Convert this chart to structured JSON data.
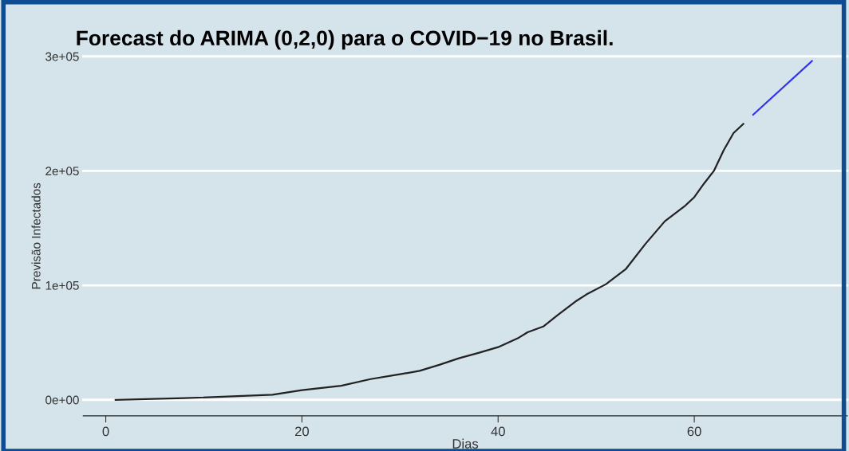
{
  "chart_data": {
    "type": "line",
    "title": "Forecast do ARIMA (0,2,0) para o COVID−19 no Brasil.",
    "xlabel": "Dias",
    "ylabel": "Previsão Infectados",
    "series": [
      {
        "color": "#222222",
        "x": [
          1,
          8,
          17,
          20,
          24,
          27,
          30,
          32,
          34,
          36,
          38,
          40,
          42,
          43,
          44.6,
          46,
          48,
          49,
          51,
          53,
          55,
          57,
          59,
          60,
          61,
          62,
          63,
          64,
          65
        ],
        "values": [
          0,
          1400,
          4400,
          8400,
          12300,
          18100,
          22300,
          25300,
          30500,
          36300,
          41000,
          46000,
          53700,
          59000,
          64000,
          73500,
          86500,
          92000,
          101000,
          114000,
          136000,
          156000,
          169000,
          177000,
          189000,
          200000,
          218000,
          233000,
          241000
        ]
      },
      {
        "color": "#3333ee",
        "x": [
          66,
          72
        ],
        "values": [
          249000,
          296000
        ]
      }
    ],
    "xlim": [
      -2.3,
      75.6
    ],
    "ylim": [
      -14000,
      300000
    ],
    "xticks": [
      0,
      20,
      40,
      60
    ],
    "yticks": [
      {
        "value": 0,
        "label": "0e+00"
      },
      {
        "value": 100000,
        "label": "1e+05"
      },
      {
        "value": 200000,
        "label": "2e+05"
      },
      {
        "value": 300000,
        "label": "3e+05"
      }
    ],
    "grid": "y"
  }
}
